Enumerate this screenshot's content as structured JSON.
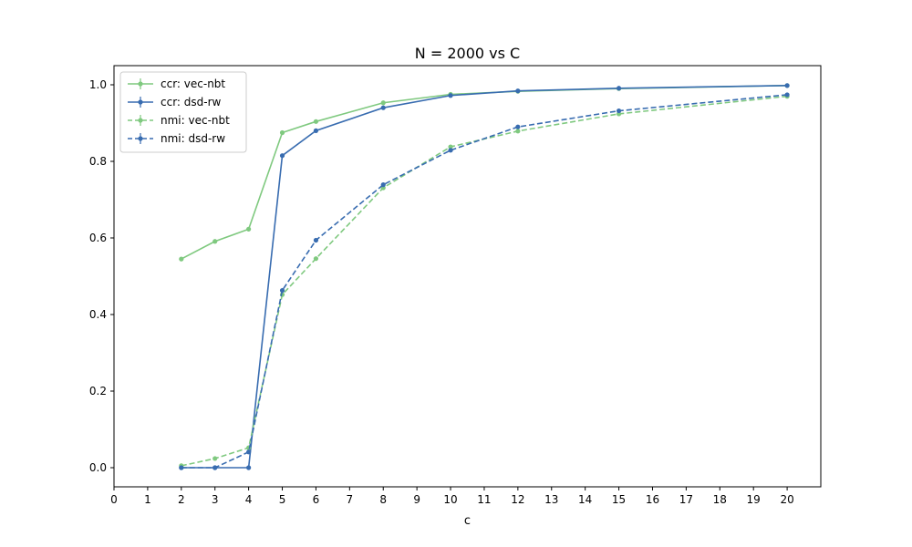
{
  "chart_data": {
    "type": "line",
    "title": "N = 2000 vs C",
    "xlabel": "c",
    "ylabel": "",
    "xlim": [
      0,
      21
    ],
    "ylim": [
      -0.05,
      1.05
    ],
    "xticks": [
      "0",
      "1",
      "2",
      "3",
      "4",
      "5",
      "6",
      "7",
      "8",
      "9",
      "10",
      "11",
      "12",
      "13",
      "14",
      "15",
      "16",
      "17",
      "18",
      "19",
      "20"
    ],
    "yticks": [
      "0.0",
      "0.2",
      "0.4",
      "0.6",
      "0.8",
      "1.0"
    ],
    "grid": false,
    "legend_position": "upper-left",
    "series": [
      {
        "name": "ccr: vec-nbt",
        "color": "#7fc97f",
        "linestyle": "solid",
        "x": [
          2,
          3,
          4,
          5,
          6,
          8,
          10,
          12,
          15,
          20
        ],
        "y": [
          0.545,
          0.591,
          0.623,
          0.875,
          0.904,
          0.953,
          0.975,
          0.983,
          0.99,
          0.998
        ]
      },
      {
        "name": "ccr: dsd-rw",
        "color": "#386cb0",
        "linestyle": "solid",
        "x": [
          2,
          3,
          4,
          5,
          6,
          8,
          10,
          12,
          15,
          20
        ],
        "y": [
          0.0,
          0.0,
          0.0,
          0.815,
          0.88,
          0.94,
          0.972,
          0.984,
          0.991,
          0.998
        ]
      },
      {
        "name": "nmi: vec-nbt",
        "color": "#7fc97f",
        "linestyle": "dashed",
        "x": [
          2,
          3,
          4,
          5,
          6,
          8,
          10,
          12,
          15,
          20
        ],
        "y": [
          0.005,
          0.024,
          0.052,
          0.452,
          0.546,
          0.731,
          0.838,
          0.879,
          0.924,
          0.97
        ]
      },
      {
        "name": "nmi: dsd-rw",
        "color": "#386cb0",
        "linestyle": "dashed",
        "x": [
          2,
          3,
          4,
          5,
          6,
          8,
          10,
          12,
          15,
          20
        ],
        "y": [
          0.0,
          0.0,
          0.041,
          0.463,
          0.594,
          0.739,
          0.829,
          0.89,
          0.932,
          0.974
        ]
      }
    ]
  }
}
